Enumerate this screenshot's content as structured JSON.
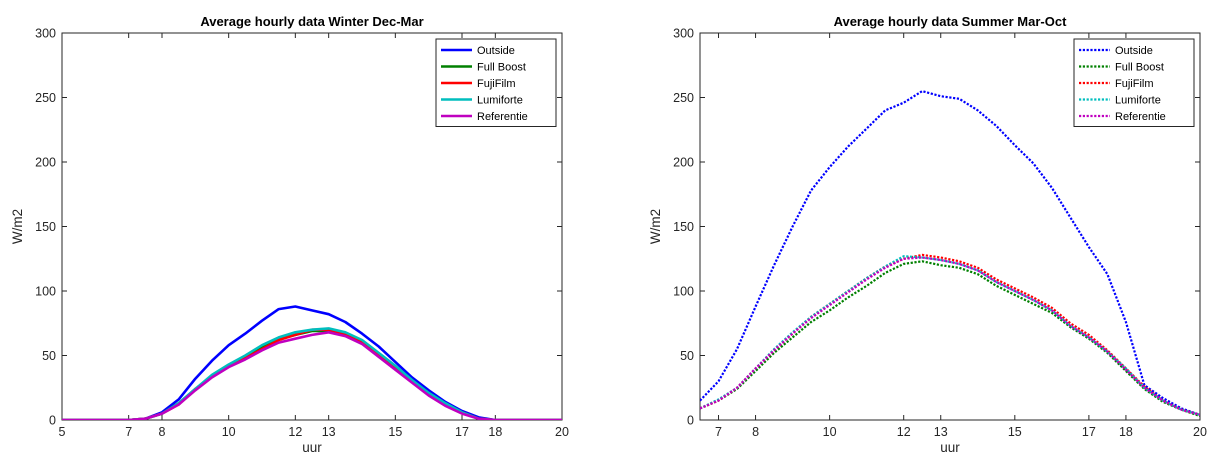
{
  "chart_data": [
    {
      "type": "line",
      "title": "Average hourly data Winter Dec-Mar",
      "xlabel": "uur",
      "ylabel": "W/m2",
      "xlim": [
        5,
        20
      ],
      "ylim": [
        0,
        300
      ],
      "xticks": [
        5,
        7,
        8,
        10,
        12,
        13,
        15,
        17,
        18,
        20
      ],
      "yticks": [
        0,
        50,
        100,
        150,
        200,
        250,
        300
      ],
      "legend_position": "top-right",
      "line_style": "solid",
      "series": [
        {
          "name": "Outside",
          "color": "#0000ff",
          "x": [
            5,
            6,
            7,
            7.5,
            8,
            8.5,
            9,
            9.5,
            10,
            10.5,
            11,
            11.5,
            12,
            12.5,
            13,
            13.5,
            14,
            14.5,
            15,
            15.5,
            16,
            16.5,
            17,
            17.5,
            18,
            20
          ],
          "y": [
            0,
            0,
            0,
            1,
            6,
            16,
            32,
            46,
            58,
            67,
            77,
            86,
            88,
            85,
            82,
            76,
            67,
            57,
            45,
            33,
            23,
            14,
            7,
            2,
            0,
            0
          ]
        },
        {
          "name": "Full Boost",
          "color": "#008000",
          "x": [
            5,
            6,
            7,
            7.5,
            8,
            8.5,
            9,
            9.5,
            10,
            10.5,
            11,
            11.5,
            12,
            12.5,
            13,
            13.5,
            14,
            14.5,
            15,
            15.5,
            16,
            16.5,
            17,
            17.5,
            18,
            20
          ],
          "y": [
            0,
            0,
            0,
            1,
            5,
            13,
            24,
            34,
            42,
            49,
            56,
            63,
            66,
            69,
            69,
            66,
            60,
            50,
            40,
            30,
            20,
            12,
            6,
            1,
            0,
            0
          ]
        },
        {
          "name": "FujiFilm",
          "color": "#ff0000",
          "x": [
            5,
            6,
            7,
            7.5,
            8,
            8.5,
            9,
            9.5,
            10,
            10.5,
            11,
            11.5,
            12,
            12.5,
            13,
            13.5,
            14,
            14.5,
            15,
            15.5,
            16,
            16.5,
            17,
            17.5,
            18,
            20
          ],
          "y": [
            0,
            0,
            0,
            1,
            5,
            12,
            24,
            34,
            42,
            48,
            55,
            62,
            66,
            70,
            70,
            67,
            61,
            51,
            41,
            30,
            20,
            12,
            6,
            1,
            0,
            0
          ]
        },
        {
          "name": "Lumiforte",
          "color": "#00bebe",
          "x": [
            5,
            6,
            7,
            7.5,
            8,
            8.5,
            9,
            9.5,
            10,
            10.5,
            11,
            11.5,
            12,
            12.5,
            13,
            13.5,
            14,
            14.5,
            15,
            15.5,
            16,
            16.5,
            17,
            17.5,
            18,
            20
          ],
          "y": [
            0,
            0,
            0,
            1,
            5,
            13,
            24,
            35,
            43,
            50,
            58,
            64,
            68,
            70,
            71,
            68,
            62,
            52,
            42,
            31,
            21,
            13,
            6,
            1,
            0,
            0
          ]
        },
        {
          "name": "Referentie",
          "color": "#c000c0",
          "x": [
            5,
            6,
            7,
            7.5,
            8,
            8.5,
            9,
            9.5,
            10,
            10.5,
            11,
            11.5,
            12,
            12.5,
            13,
            13.5,
            14,
            14.5,
            15,
            15.5,
            16,
            16.5,
            17,
            17.5,
            18,
            20
          ],
          "y": [
            0,
            0,
            0,
            1,
            5,
            12,
            23,
            33,
            41,
            47,
            54,
            60,
            63,
            66,
            68,
            65,
            59,
            49,
            39,
            29,
            19,
            11,
            5,
            1,
            0,
            0
          ]
        }
      ]
    },
    {
      "type": "line",
      "title": "Average hourly data Summer Mar-Oct",
      "xlabel": "uur",
      "ylabel": "W/m2",
      "xlim": [
        6.5,
        20
      ],
      "ylim": [
        0,
        300
      ],
      "xticks": [
        7,
        8,
        10,
        12,
        13,
        15,
        17,
        18,
        20
      ],
      "yticks": [
        0,
        50,
        100,
        150,
        200,
        250,
        300
      ],
      "legend_position": "top-right",
      "line_style": "dotted",
      "series": [
        {
          "name": "Outside",
          "color": "#0000ff",
          "x": [
            6.5,
            7,
            7.5,
            8,
            8.5,
            9,
            9.5,
            10,
            10.5,
            11,
            11.5,
            12,
            12.5,
            13,
            13.5,
            14,
            14.5,
            15,
            15.5,
            16,
            16.5,
            17,
            17.5,
            18,
            18.5,
            19,
            19.5,
            20
          ],
          "y": [
            15,
            30,
            55,
            88,
            120,
            150,
            178,
            196,
            212,
            226,
            240,
            246,
            255,
            251,
            249,
            240,
            228,
            213,
            199,
            180,
            157,
            134,
            113,
            76,
            27,
            17,
            9,
            4
          ]
        },
        {
          "name": "Full Boost",
          "color": "#008000",
          "x": [
            6.5,
            7,
            7.5,
            8,
            8.5,
            9,
            9.5,
            10,
            10.5,
            11,
            11.5,
            12,
            12.5,
            13,
            13.5,
            14,
            14.5,
            15,
            15.5,
            16,
            16.5,
            17,
            17.5,
            18,
            18.5,
            19,
            19.5,
            20
          ],
          "y": [
            9,
            15,
            24,
            38,
            52,
            64,
            76,
            85,
            95,
            104,
            114,
            121,
            123,
            120,
            118,
            113,
            104,
            97,
            90,
            83,
            72,
            63,
            52,
            38,
            24,
            14,
            8,
            3
          ]
        },
        {
          "name": "FujiFilm",
          "color": "#ff0000",
          "x": [
            6.5,
            7,
            7.5,
            8,
            8.5,
            9,
            9.5,
            10,
            10.5,
            11,
            11.5,
            12,
            12.5,
            13,
            13.5,
            14,
            14.5,
            15,
            15.5,
            16,
            16.5,
            17,
            17.5,
            18,
            18.5,
            19,
            19.5,
            20
          ],
          "y": [
            9,
            15,
            25,
            40,
            54,
            67,
            80,
            90,
            100,
            110,
            119,
            125,
            128,
            126,
            123,
            118,
            109,
            102,
            95,
            87,
            75,
            66,
            54,
            40,
            26,
            15,
            8,
            4
          ]
        },
        {
          "name": "Lumiforte",
          "color": "#00bebe",
          "x": [
            6.5,
            7,
            7.5,
            8,
            8.5,
            9,
            9.5,
            10,
            10.5,
            11,
            11.5,
            12,
            12.5,
            13,
            13.5,
            14,
            14.5,
            15,
            15.5,
            16,
            16.5,
            17,
            17.5,
            18,
            18.5,
            19,
            19.5,
            20
          ],
          "y": [
            9,
            16,
            25,
            40,
            55,
            68,
            80,
            90,
            100,
            110,
            119,
            127,
            126,
            124,
            121,
            116,
            107,
            100,
            93,
            85,
            73,
            64,
            53,
            40,
            25,
            15,
            8,
            4
          ]
        },
        {
          "name": "Referentie",
          "color": "#c000c0",
          "x": [
            6.5,
            7,
            7.5,
            8,
            8.5,
            9,
            9.5,
            10,
            10.5,
            11,
            11.5,
            12,
            12.5,
            13,
            13.5,
            14,
            14.5,
            15,
            15.5,
            16,
            16.5,
            17,
            17.5,
            18,
            18.5,
            19,
            19.5,
            20
          ],
          "y": [
            9,
            15,
            25,
            40,
            54,
            67,
            79,
            89,
            99,
            109,
            118,
            125,
            126,
            124,
            121,
            116,
            107,
            100,
            93,
            85,
            73,
            64,
            53,
            39,
            25,
            15,
            8,
            4
          ]
        }
      ]
    }
  ]
}
